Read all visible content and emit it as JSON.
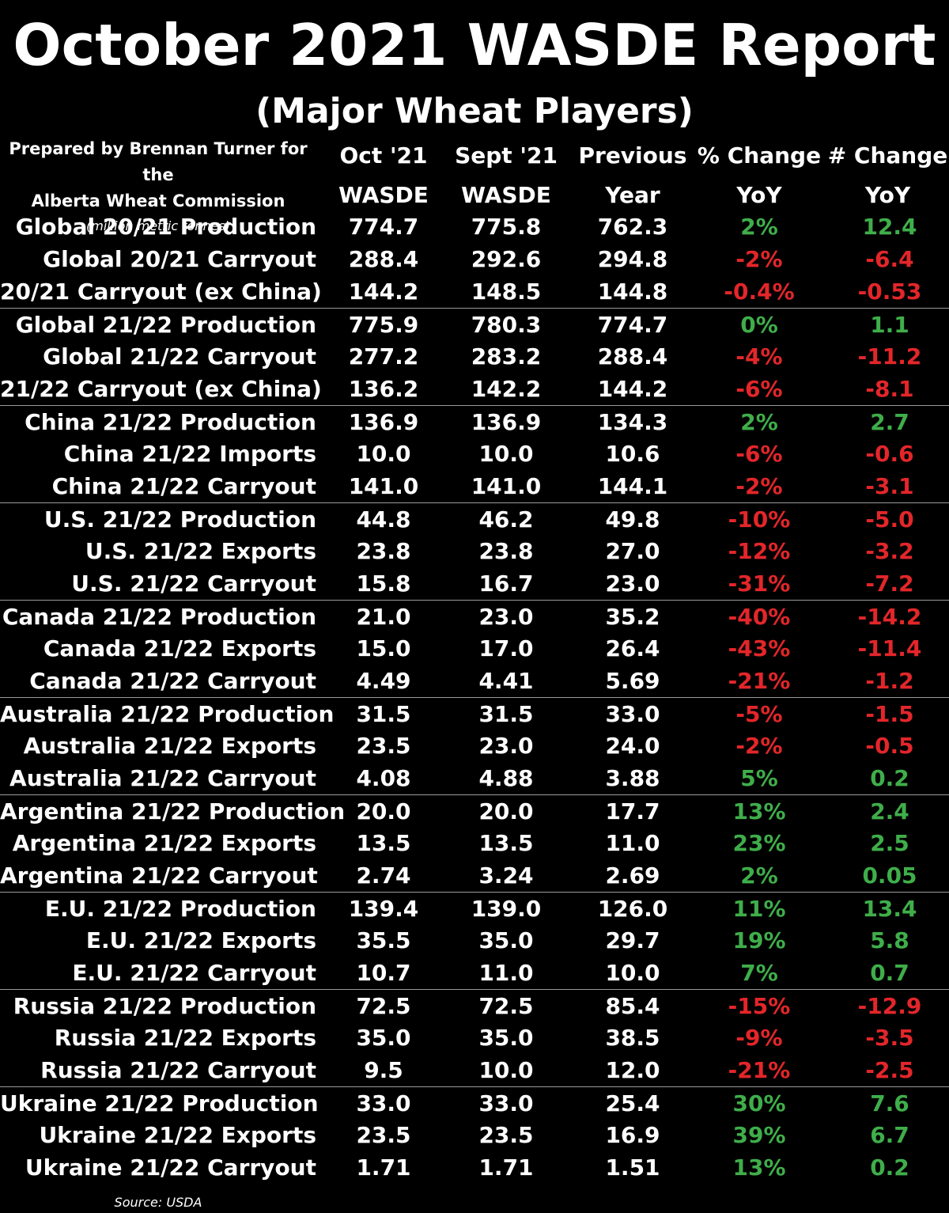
{
  "title": "October 2021 WASDE Report",
  "subtitle": "(Major Wheat Players)",
  "prepared_by_line1": "Prepared by Brennan Turner for the",
  "prepared_by_line2": "Alberta Wheat Commission",
  "units": "(million metric tonnes)",
  "headers": {
    "col1": [
      "Oct '21",
      "WASDE"
    ],
    "col2": [
      "Sept '21",
      "WASDE"
    ],
    "col3": [
      "Previous",
      "Year"
    ],
    "col4": [
      "% Change",
      "YoY"
    ],
    "col5": [
      "# Change",
      "YoY"
    ]
  },
  "colors": {
    "positive": "#3fae4a",
    "negative": "#e3262a",
    "background": "#000000",
    "text": "#ffffff"
  },
  "rows": [
    {
      "label": "Global 20/21 Production",
      "oct": "774.7",
      "sept": "775.8",
      "prev": "762.3",
      "pct": "2%",
      "num": "12.4",
      "dir": "pos"
    },
    {
      "label": "Global 20/21 Carryout",
      "oct": "288.4",
      "sept": "292.6",
      "prev": "294.8",
      "pct": "-2%",
      "num": "-6.4",
      "dir": "neg"
    },
    {
      "label": "20/21 Carryout (ex China)",
      "oct": "144.2",
      "sept": "148.5",
      "prev": "144.8",
      "pct": "-0.4%",
      "num": "-0.53",
      "dir": "neg"
    },
    {
      "label": "Global 21/22 Production",
      "oct": "775.9",
      "sept": "780.3",
      "prev": "774.7",
      "pct": "0%",
      "num": "1.1",
      "dir": "pos"
    },
    {
      "label": "Global 21/22 Carryout",
      "oct": "277.2",
      "sept": "283.2",
      "prev": "288.4",
      "pct": "-4%",
      "num": "-11.2",
      "dir": "neg"
    },
    {
      "label": "21/22 Carryout (ex China)",
      "oct": "136.2",
      "sept": "142.2",
      "prev": "144.2",
      "pct": "-6%",
      "num": "-8.1",
      "dir": "neg"
    },
    {
      "label": "China 21/22 Production",
      "oct": "136.9",
      "sept": "136.9",
      "prev": "134.3",
      "pct": "2%",
      "num": "2.7",
      "dir": "pos"
    },
    {
      "label": "China 21/22 Imports",
      "oct": "10.0",
      "sept": "10.0",
      "prev": "10.6",
      "pct": "-6%",
      "num": "-0.6",
      "dir": "neg"
    },
    {
      "label": "China 21/22 Carryout",
      "oct": "141.0",
      "sept": "141.0",
      "prev": "144.1",
      "pct": "-2%",
      "num": "-3.1",
      "dir": "neg"
    },
    {
      "label": "U.S. 21/22 Production",
      "oct": "44.8",
      "sept": "46.2",
      "prev": "49.8",
      "pct": "-10%",
      "num": "-5.0",
      "dir": "neg"
    },
    {
      "label": "U.S. 21/22 Exports",
      "oct": "23.8",
      "sept": "23.8",
      "prev": "27.0",
      "pct": "-12%",
      "num": "-3.2",
      "dir": "neg"
    },
    {
      "label": "U.S. 21/22 Carryout",
      "oct": "15.8",
      "sept": "16.7",
      "prev": "23.0",
      "pct": "-31%",
      "num": "-7.2",
      "dir": "neg"
    },
    {
      "label": "Canada 21/22 Production",
      "oct": "21.0",
      "sept": "23.0",
      "prev": "35.2",
      "pct": "-40%",
      "num": "-14.2",
      "dir": "neg"
    },
    {
      "label": "Canada 21/22 Exports",
      "oct": "15.0",
      "sept": "17.0",
      "prev": "26.4",
      "pct": "-43%",
      "num": "-11.4",
      "dir": "neg"
    },
    {
      "label": "Canada 21/22 Carryout",
      "oct": "4.49",
      "sept": "4.41",
      "prev": "5.69",
      "pct": "-21%",
      "num": "-1.2",
      "dir": "neg"
    },
    {
      "label": "Australia 21/22 Production",
      "oct": "31.5",
      "sept": "31.5",
      "prev": "33.0",
      "pct": "-5%",
      "num": "-1.5",
      "dir": "neg"
    },
    {
      "label": "Australia 21/22 Exports",
      "oct": "23.5",
      "sept": "23.0",
      "prev": "24.0",
      "pct": "-2%",
      "num": "-0.5",
      "dir": "neg"
    },
    {
      "label": "Australia 21/22 Carryout",
      "oct": "4.08",
      "sept": "4.88",
      "prev": "3.88",
      "pct": "5%",
      "num": "0.2",
      "dir": "pos"
    },
    {
      "label": "Argentina 21/22 Production",
      "oct": "20.0",
      "sept": "20.0",
      "prev": "17.7",
      "pct": "13%",
      "num": "2.4",
      "dir": "pos"
    },
    {
      "label": "Argentina 21/22 Exports",
      "oct": "13.5",
      "sept": "13.5",
      "prev": "11.0",
      "pct": "23%",
      "num": "2.5",
      "dir": "pos"
    },
    {
      "label": "Argentina 21/22 Carryout",
      "oct": "2.74",
      "sept": "3.24",
      "prev": "2.69",
      "pct": "2%",
      "num": "0.05",
      "dir": "pos"
    },
    {
      "label": "E.U. 21/22 Production",
      "oct": "139.4",
      "sept": "139.0",
      "prev": "126.0",
      "pct": "11%",
      "num": "13.4",
      "dir": "pos"
    },
    {
      "label": "E.U. 21/22 Exports",
      "oct": "35.5",
      "sept": "35.0",
      "prev": "29.7",
      "pct": "19%",
      "num": "5.8",
      "dir": "pos"
    },
    {
      "label": "E.U. 21/22 Carryout",
      "oct": "10.7",
      "sept": "11.0",
      "prev": "10.0",
      "pct": "7%",
      "num": "0.7",
      "dir": "pos"
    },
    {
      "label": "Russia 21/22 Production",
      "oct": "72.5",
      "sept": "72.5",
      "prev": "85.4",
      "pct": "-15%",
      "num": "-12.9",
      "dir": "neg"
    },
    {
      "label": "Russia 21/22 Exports",
      "oct": "35.0",
      "sept": "35.0",
      "prev": "38.5",
      "pct": "-9%",
      "num": "-3.5",
      "dir": "neg"
    },
    {
      "label": "Russia 21/22 Carryout",
      "oct": "9.5",
      "sept": "10.0",
      "prev": "12.0",
      "pct": "-21%",
      "num": "-2.5",
      "dir": "neg"
    },
    {
      "label": "Ukraine 21/22 Production",
      "oct": "33.0",
      "sept": "33.0",
      "prev": "25.4",
      "pct": "30%",
      "num": "7.6",
      "dir": "pos"
    },
    {
      "label": "Ukraine 21/22 Exports",
      "oct": "23.5",
      "sept": "23.5",
      "prev": "16.9",
      "pct": "39%",
      "num": "6.7",
      "dir": "pos"
    },
    {
      "label": "Ukraine 21/22 Carryout",
      "oct": "1.71",
      "sept": "1.71",
      "prev": "1.51",
      "pct": "13%",
      "num": "0.2",
      "dir": "pos"
    }
  ],
  "source": "Source: USDA"
}
